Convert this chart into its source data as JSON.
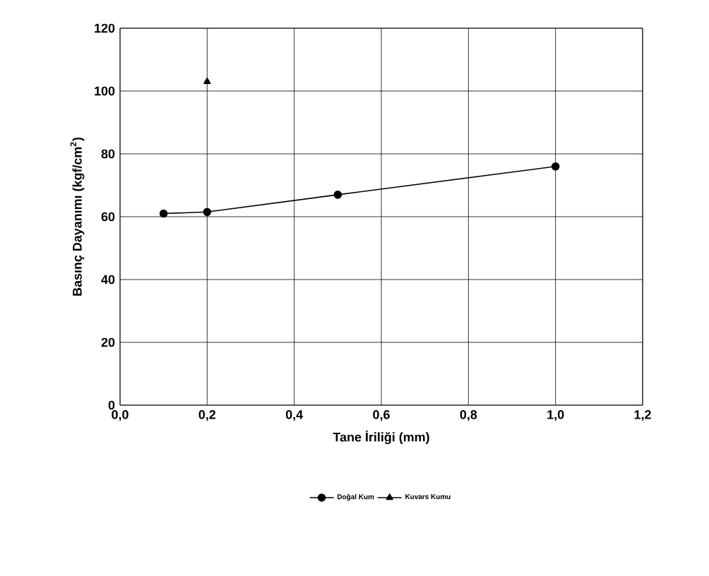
{
  "chart_data": {
    "type": "line",
    "xlabel": "Tane İriliği (mm)",
    "ylabel": "Basınç Dayanımı (kgf/cm$^{2}$)",
    "xlim": [
      0,
      1.2
    ],
    "ylim": [
      0,
      120
    ],
    "xticks": [
      {
        "value": 0,
        "label": "0,0"
      },
      {
        "value": 0.2,
        "label": "0,2"
      },
      {
        "value": 0.4,
        "label": "0,4"
      },
      {
        "value": 0.6,
        "label": "0,6"
      },
      {
        "value": 0.8,
        "label": "0,8"
      },
      {
        "value": 1.0,
        "label": "1,0"
      },
      {
        "value": 1.2,
        "label": "1,2"
      }
    ],
    "yticks": [
      0,
      20,
      40,
      60,
      80,
      100,
      120
    ],
    "grid": true,
    "legend": "bottom",
    "series": [
      {
        "name": "Doğal Kum",
        "color": "#000000",
        "marker": "circle",
        "x": [
          0.1,
          0.2,
          0.5,
          1.0
        ],
        "values": [
          61,
          61.5,
          67,
          76
        ]
      },
      {
        "name": "Kuvars Kumu",
        "color": "#000000",
        "marker": "triangle",
        "x": [
          0.2
        ],
        "values": [
          103
        ]
      }
    ]
  }
}
